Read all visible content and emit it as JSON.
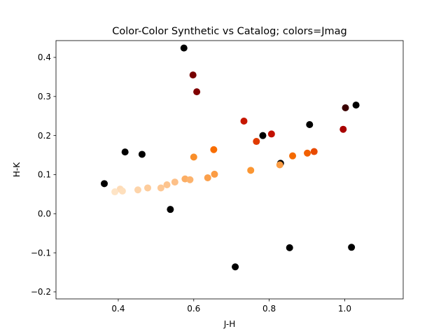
{
  "chart_data": {
    "type": "scatter",
    "title": "Color-Color Synthetic vs Catalog; colors=Jmag",
    "xlabel": "J-H",
    "ylabel": "H-K",
    "xlim": [
      0.235,
      1.155
    ],
    "ylim": [
      -0.218,
      0.443
    ],
    "xticks": [
      0.4,
      0.6,
      0.8,
      1.0
    ],
    "xtick_labels": [
      "0.4",
      "0.6",
      "0.8",
      "1.0"
    ],
    "yticks": [
      -0.2,
      -0.1,
      0.0,
      0.1,
      0.2,
      0.3,
      0.4
    ],
    "ytick_labels": [
      "−0.2",
      "−0.1",
      "0.0",
      "0.1",
      "0.2",
      "0.3",
      "0.4"
    ],
    "grid": false,
    "colormap": "gist_heat_r",
    "series": [
      {
        "points": [
          {
            "x": 0.574,
            "y": 0.424,
            "color": "#000000"
          },
          {
            "x": 0.598,
            "y": 0.355,
            "color": "#760000"
          },
          {
            "x": 0.608,
            "y": 0.312,
            "color": "#800000"
          },
          {
            "x": 0.733,
            "y": 0.237,
            "color": "#c61600"
          },
          {
            "x": 0.783,
            "y": 0.2,
            "color": "#000000"
          },
          {
            "x": 0.806,
            "y": 0.204,
            "color": "#c21000"
          },
          {
            "x": 0.766,
            "y": 0.185,
            "color": "#e03a00"
          },
          {
            "x": 0.907,
            "y": 0.228,
            "color": "#000000"
          },
          {
            "x": 1.002,
            "y": 0.271,
            "color": "#3a0000"
          },
          {
            "x": 1.03,
            "y": 0.278,
            "color": "#000000"
          },
          {
            "x": 0.996,
            "y": 0.216,
            "color": "#a80200"
          },
          {
            "x": 0.418,
            "y": 0.158,
            "color": "#000000"
          },
          {
            "x": 0.463,
            "y": 0.152,
            "color": "#000000"
          },
          {
            "x": 0.6,
            "y": 0.145,
            "color": "#f98e2a"
          },
          {
            "x": 0.653,
            "y": 0.164,
            "color": "#f86d00"
          },
          {
            "x": 0.83,
            "y": 0.129,
            "color": "#000000"
          },
          {
            "x": 0.828,
            "y": 0.125,
            "color": "#fb9c44"
          },
          {
            "x": 0.862,
            "y": 0.148,
            "color": "#f46a00"
          },
          {
            "x": 0.901,
            "y": 0.155,
            "color": "#f26000"
          },
          {
            "x": 0.919,
            "y": 0.159,
            "color": "#e84a00"
          },
          {
            "x": 0.751,
            "y": 0.111,
            "color": "#fb9632"
          },
          {
            "x": 0.655,
            "y": 0.101,
            "color": "#fb9c44"
          },
          {
            "x": 0.637,
            "y": 0.092,
            "color": "#fba04c"
          },
          {
            "x": 0.577,
            "y": 0.089,
            "color": "#fcae64"
          },
          {
            "x": 0.59,
            "y": 0.087,
            "color": "#fcb36e"
          },
          {
            "x": 0.363,
            "y": 0.077,
            "color": "#000000"
          },
          {
            "x": 0.55,
            "y": 0.081,
            "color": "#fdc088"
          },
          {
            "x": 0.529,
            "y": 0.074,
            "color": "#fdc48e"
          },
          {
            "x": 0.513,
            "y": 0.066,
            "color": "#fdc896"
          },
          {
            "x": 0.478,
            "y": 0.066,
            "color": "#fdcc9c"
          },
          {
            "x": 0.452,
            "y": 0.061,
            "color": "#fdd4aa"
          },
          {
            "x": 0.405,
            "y": 0.063,
            "color": "#fedcb8"
          },
          {
            "x": 0.411,
            "y": 0.058,
            "color": "#fedfbc"
          },
          {
            "x": 0.391,
            "y": 0.056,
            "color": "#fee4c6"
          },
          {
            "x": 0.538,
            "y": 0.011,
            "color": "#000000"
          },
          {
            "x": 0.854,
            "y": -0.087,
            "color": "#000000"
          },
          {
            "x": 1.018,
            "y": -0.086,
            "color": "#000000"
          },
          {
            "x": 0.71,
            "y": -0.136,
            "color": "#000000"
          }
        ]
      }
    ]
  }
}
